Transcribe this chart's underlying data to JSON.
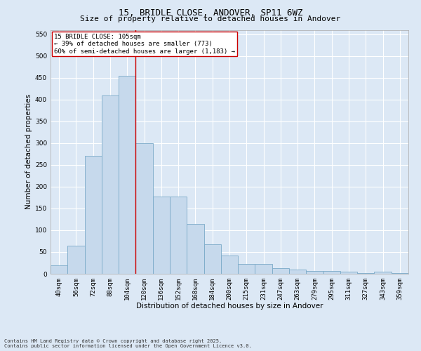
{
  "title": "15, BRIDLE CLOSE, ANDOVER, SP11 6WZ",
  "subtitle": "Size of property relative to detached houses in Andover",
  "xlabel": "Distribution of detached houses by size in Andover",
  "ylabel": "Number of detached properties",
  "bar_labels": [
    "40sqm",
    "56sqm",
    "72sqm",
    "88sqm",
    "104sqm",
    "120sqm",
    "136sqm",
    "152sqm",
    "168sqm",
    "184sqm",
    "200sqm",
    "215sqm",
    "231sqm",
    "247sqm",
    "263sqm",
    "279sqm",
    "295sqm",
    "311sqm",
    "327sqm",
    "343sqm",
    "359sqm"
  ],
  "bar_values": [
    20,
    65,
    270,
    410,
    455,
    300,
    178,
    178,
    115,
    68,
    42,
    23,
    23,
    13,
    10,
    6,
    7,
    5,
    2,
    5,
    2
  ],
  "bar_color": "#c6d9ec",
  "bar_edge_color": "#7aaac8",
  "vline_x": 4.5,
  "vline_color": "#cc0000",
  "ylim": [
    0,
    560
  ],
  "yticks": [
    0,
    50,
    100,
    150,
    200,
    250,
    300,
    350,
    400,
    450,
    500,
    550
  ],
  "annotation_text": "15 BRIDLE CLOSE: 105sqm\n← 39% of detached houses are smaller (773)\n60% of semi-detached houses are larger (1,183) →",
  "annotation_box_facecolor": "#ffffff",
  "annotation_box_edgecolor": "#cc0000",
  "footer_text": "Contains HM Land Registry data © Crown copyright and database right 2025.\nContains public sector information licensed under the Open Government Licence v3.0.",
  "bg_color": "#dce8f5",
  "plot_bg_color": "#dce8f5",
  "title_fontsize": 9,
  "subtitle_fontsize": 8,
  "tick_fontsize": 6.5,
  "ylabel_fontsize": 7.5,
  "xlabel_fontsize": 7.5,
  "annotation_fontsize": 6.5,
  "footer_fontsize": 5
}
